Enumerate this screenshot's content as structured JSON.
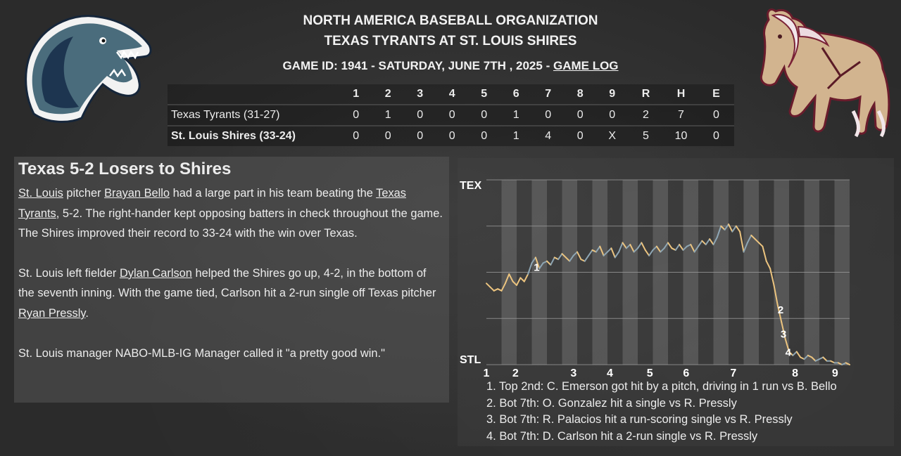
{
  "header": {
    "org": "NORTH AMERICA BASEBALL ORGANIZATION",
    "matchup": "TEXAS TYRANTS AT ST. LOUIS SHIRES",
    "game_info": "GAME ID: 1941 - SATURDAY, JUNE 7TH , 2025 - ",
    "game_log_link": "GAME LOG"
  },
  "logos": {
    "away": "tyrannosaurus-head-logo",
    "home": "draft-horse-logo"
  },
  "linescore": {
    "columns": [
      "",
      "1",
      "2",
      "3",
      "4",
      "5",
      "6",
      "7",
      "8",
      "9",
      "R",
      "H",
      "E"
    ],
    "rows": [
      {
        "team": "Texas Tyrants (31-27)",
        "cells": [
          "0",
          "1",
          "0",
          "0",
          "0",
          "1",
          "0",
          "0",
          "0",
          "2",
          "7",
          "0"
        ]
      },
      {
        "team": "St. Louis Shires (33-24)",
        "cells": [
          "0",
          "0",
          "0",
          "0",
          "0",
          "1",
          "4",
          "0",
          "X",
          "5",
          "10",
          "0"
        ]
      }
    ]
  },
  "recap": {
    "title": "Texas 5-2 Losers to Shires",
    "p1": {
      "link1": "St. Louis",
      "t1": " pitcher ",
      "link2": "Brayan Bello",
      "t2": " had a large part in his team beating the ",
      "link3": "Texas Tyrants",
      "t3": ", 5-2. The right-hander kept opposing batters in check throughout the game. The Shires improved their record to 33-24 with the win over Texas."
    },
    "p2": {
      "t1": "St. Louis left fielder ",
      "link1": "Dylan Carlson",
      "t2": " helped the Shires go up, 4-2, in the bottom of the seventh inning. With the game tied, Carlson hit a 2-run single off Texas pitcher ",
      "link2": "Ryan Pressly",
      "t3": "."
    },
    "p3": "St. Louis manager NABO-MLB-IG Manager called it \"a pretty good win.\""
  },
  "chart_data": {
    "type": "line",
    "title": "",
    "ylabel_top": "TEX",
    "ylabel_bottom": "STL",
    "x_ticks": [
      "1",
      "2",
      "3",
      "4",
      "5",
      "6",
      "7",
      "8",
      "9"
    ],
    "ylim": [
      0,
      100
    ],
    "grid": true,
    "colors": {
      "home": "#ecc47f",
      "away": "#8ea6b4",
      "marker_text": "#ffffff",
      "band": "#7a7a7a",
      "grid": "#9a9a9a",
      "axis_text": "#ffffff"
    },
    "series": [
      {
        "values": [
          [
            0.0,
            44
          ],
          [
            0.4,
            42
          ],
          [
            0.8,
            40
          ],
          [
            1.2,
            41
          ],
          [
            1.6,
            40
          ],
          [
            2.0,
            44
          ],
          [
            2.4,
            49
          ],
          [
            2.8,
            45
          ],
          [
            3.2,
            43
          ],
          [
            3.6,
            47
          ],
          [
            4.0,
            45
          ],
          [
            4.4,
            49
          ],
          [
            4.8,
            55
          ],
          [
            5.2,
            58
          ],
          [
            5.6,
            52
          ],
          [
            6.0,
            55
          ],
          [
            6.4,
            56
          ],
          [
            6.8,
            54
          ],
          [
            7.2,
            58
          ],
          [
            7.6,
            57
          ],
          [
            8.0,
            60
          ],
          [
            8.4,
            58
          ],
          [
            8.8,
            56
          ],
          [
            9.2,
            59
          ],
          [
            9.6,
            61
          ],
          [
            10.0,
            57
          ],
          [
            10.4,
            56
          ],
          [
            10.8,
            59
          ],
          [
            11.2,
            62
          ],
          [
            11.6,
            61
          ],
          [
            12.0,
            64
          ],
          [
            12.4,
            59
          ],
          [
            12.8,
            61
          ],
          [
            13.2,
            63
          ],
          [
            13.6,
            58
          ],
          [
            14.0,
            61
          ],
          [
            14.4,
            66
          ],
          [
            14.8,
            63
          ],
          [
            15.2,
            65
          ],
          [
            15.6,
            61
          ],
          [
            16.0,
            63
          ],
          [
            16.4,
            66
          ],
          [
            16.8,
            62
          ],
          [
            17.2,
            59
          ],
          [
            17.6,
            62
          ],
          [
            18.0,
            64
          ],
          [
            18.4,
            61
          ],
          [
            18.8,
            63
          ],
          [
            19.2,
            66
          ],
          [
            19.6,
            63
          ],
          [
            20.0,
            62
          ],
          [
            20.4,
            65
          ],
          [
            20.8,
            62
          ],
          [
            21.2,
            64
          ],
          [
            21.6,
            65
          ],
          [
            22.0,
            61
          ],
          [
            22.4,
            64
          ],
          [
            22.8,
            67
          ],
          [
            23.2,
            65
          ],
          [
            23.6,
            68
          ],
          [
            24.0,
            65
          ],
          [
            24.4,
            69
          ],
          [
            24.8,
            75
          ],
          [
            25.2,
            73
          ],
          [
            25.6,
            76
          ],
          [
            26.0,
            72
          ],
          [
            26.4,
            75
          ],
          [
            26.8,
            72
          ],
          [
            27.2,
            61
          ],
          [
            27.6,
            66
          ],
          [
            28.0,
            70
          ],
          [
            28.4,
            68
          ],
          [
            28.8,
            66
          ],
          [
            29.2,
            64
          ],
          [
            29.6,
            56
          ],
          [
            30.0,
            52
          ],
          [
            30.4,
            43
          ],
          [
            30.8,
            32
          ],
          [
            31.2,
            23
          ],
          [
            31.6,
            14
          ],
          [
            32.0,
            7
          ],
          [
            32.4,
            5
          ],
          [
            32.8,
            7
          ],
          [
            33.2,
            4
          ],
          [
            33.6,
            3
          ],
          [
            34.0,
            5
          ],
          [
            34.4,
            4
          ],
          [
            34.8,
            2
          ],
          [
            35.2,
            3
          ],
          [
            35.6,
            4
          ],
          [
            36.0,
            2
          ],
          [
            36.4,
            2
          ],
          [
            36.8,
            1
          ],
          [
            37.2,
            1
          ],
          [
            37.6,
            0
          ],
          [
            38.0,
            1
          ],
          [
            38.4,
            0
          ]
        ]
      }
    ],
    "markers": [
      {
        "label": "1",
        "x": 5.0,
        "y": 53
      },
      {
        "label": "2",
        "x": 30.8,
        "y": 30
      },
      {
        "label": "3",
        "x": 31.1,
        "y": 17
      },
      {
        "label": "4",
        "x": 31.6,
        "y": 7
      }
    ],
    "notes": [
      "1. Top 2nd: C. Emerson got hit by a pitch, driving in 1 run vs B. Bello",
      "2. Bot 7th: O. Gonzalez hit a single vs R. Pressly",
      "3. Bot 7th: R. Palacios hit a run-scoring single vs R. Pressly",
      "4. Bot 7th: D. Carlson hit a 2-run single vs R. Pressly"
    ]
  }
}
